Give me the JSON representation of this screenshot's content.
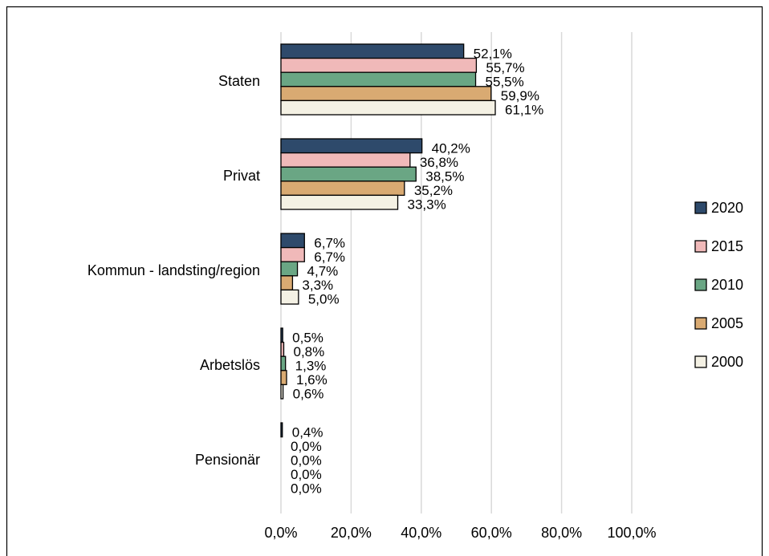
{
  "chart_data": {
    "type": "bar",
    "orientation": "horizontal",
    "categories": [
      "Staten",
      "Privat",
      "Kommun - landsting/region",
      "Arbetslös",
      "Pensionär"
    ],
    "series": [
      {
        "name": "2020",
        "color": "#2e4a6b",
        "values": [
          52.1,
          40.2,
          6.7,
          0.5,
          0.4
        ],
        "value_labels": [
          "52,1%",
          "40,2%",
          "6,7%",
          "0,5%",
          "0,4%"
        ]
      },
      {
        "name": "2015",
        "color": "#f0b9b9",
        "values": [
          55.7,
          36.8,
          6.7,
          0.8,
          0.0
        ],
        "value_labels": [
          "55,7%",
          "36,8%",
          "6,7%",
          "0,8%",
          "0,0%"
        ]
      },
      {
        "name": "2010",
        "color": "#6aa684",
        "values": [
          55.5,
          38.5,
          4.7,
          1.3,
          0.0
        ],
        "value_labels": [
          "55,5%",
          "38,5%",
          "4,7%",
          "1,3%",
          "0,0%"
        ]
      },
      {
        "name": "2005",
        "color": "#d9aa72",
        "values": [
          59.9,
          35.2,
          3.3,
          1.6,
          0.0
        ],
        "value_labels": [
          "59,9%",
          "35,2%",
          "3,3%",
          "1,6%",
          "0,0%"
        ]
      },
      {
        "name": "2000",
        "color": "#f4f1e4",
        "values": [
          61.1,
          33.3,
          5.0,
          0.6,
          0.0
        ],
        "value_labels": [
          "61,1%",
          "33,3%",
          "5,0%",
          "0,6%",
          "0,0%"
        ]
      }
    ],
    "xlim": [
      0,
      100
    ],
    "xticks": [
      {
        "value": 0,
        "label": "0,0%"
      },
      {
        "value": 20,
        "label": "20,0%"
      },
      {
        "value": 40,
        "label": "40,0%"
      },
      {
        "value": 60,
        "label": "60,0%"
      },
      {
        "value": 80,
        "label": "80,0%"
      },
      {
        "value": 100,
        "label": "100,0%"
      }
    ],
    "grid": true,
    "legend": "right"
  }
}
